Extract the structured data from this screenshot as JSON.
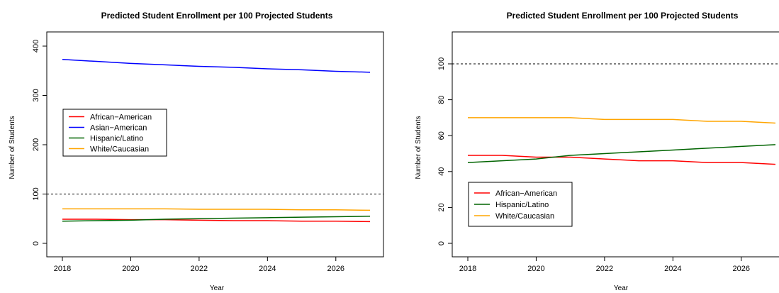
{
  "chart_data": [
    {
      "type": "line",
      "title": "Predicted Student Enrollment per 100 Projected Students",
      "xlabel": "Year",
      "ylabel": "Number of Students",
      "x": [
        2018,
        2019,
        2020,
        2021,
        2022,
        2023,
        2024,
        2025,
        2026,
        2027
      ],
      "xlim": [
        2018,
        2027
      ],
      "ylim": [
        0,
        400
      ],
      "xticks": [
        "2018",
        "2020",
        "2022",
        "2024",
        "2026"
      ],
      "yticks": [
        "0",
        "100",
        "200",
        "300",
        "400"
      ],
      "reference_line": 100,
      "legend_placement": "left-middle",
      "grid": false,
      "series": [
        {
          "name": "African−American",
          "color": "#ff0000",
          "values": [
            49,
            49,
            48,
            48,
            47,
            46,
            46,
            45,
            45,
            44
          ]
        },
        {
          "name": "Asian−American",
          "color": "#0000ff",
          "values": [
            373,
            369,
            365,
            362,
            359,
            357,
            354,
            352,
            349,
            347
          ]
        },
        {
          "name": "Hispanic/Latino",
          "color": "#006400",
          "values": [
            45,
            46,
            47,
            49,
            50,
            51,
            52,
            53,
            54,
            55
          ]
        },
        {
          "name": "White/Caucasian",
          "color": "#ffa500",
          "values": [
            70,
            70,
            70,
            70,
            69,
            69,
            69,
            68,
            68,
            67
          ]
        }
      ]
    },
    {
      "type": "line",
      "title": "Predicted Student Enrollment per 100 Projected Students",
      "xlabel": "Year",
      "ylabel": "Number of Students",
      "x": [
        2018,
        2019,
        2020,
        2021,
        2022,
        2023,
        2024,
        2025,
        2026,
        2027
      ],
      "xlim": [
        2018,
        2027
      ],
      "ylim": [
        0,
        100
      ],
      "xticks": [
        "2018",
        "2020",
        "2022",
        "2024",
        "2026"
      ],
      "yticks": [
        "0",
        "20",
        "40",
        "60",
        "80",
        "100"
      ],
      "reference_line": 100,
      "legend_placement": "bottom-left",
      "grid": false,
      "series": [
        {
          "name": "African−American",
          "color": "#ff0000",
          "values": [
            49,
            49,
            48,
            48,
            47,
            46,
            46,
            45,
            45,
            44
          ]
        },
        {
          "name": "Hispanic/Latino",
          "color": "#006400",
          "values": [
            45,
            46,
            47,
            49,
            50,
            51,
            52,
            53,
            54,
            55
          ]
        },
        {
          "name": "White/Caucasian",
          "color": "#ffa500",
          "values": [
            70,
            70,
            70,
            70,
            69,
            69,
            69,
            68,
            68,
            67
          ]
        }
      ]
    }
  ]
}
